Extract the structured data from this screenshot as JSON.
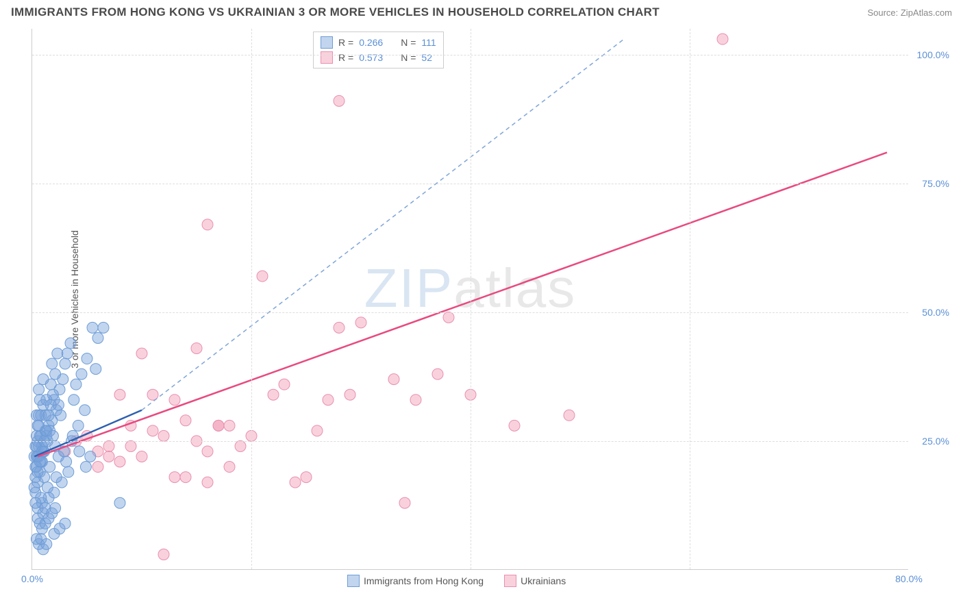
{
  "title": "IMMIGRANTS FROM HONG KONG VS UKRAINIAN 3 OR MORE VEHICLES IN HOUSEHOLD CORRELATION CHART",
  "source": "Source: ZipAtlas.com",
  "watermark_zip": "ZIP",
  "watermark_atlas": "atlas",
  "chart": {
    "type": "scatter-correlation",
    "y_axis_title": "3 or more Vehicles in Household",
    "xlim": [
      0,
      80
    ],
    "ylim": [
      0,
      105
    ],
    "x_ticks": [
      0,
      20,
      40,
      60,
      80
    ],
    "x_tick_labels": [
      "0.0%",
      "",
      "",
      "",
      "80.0%"
    ],
    "y_ticks": [
      25,
      50,
      75,
      100
    ],
    "y_tick_labels": [
      "25.0%",
      "50.0%",
      "75.0%",
      "100.0%"
    ],
    "background_color": "#ffffff",
    "grid_color": "#dddddd",
    "series": [
      {
        "name": "Immigrants from Hong Kong",
        "fill_color": "rgba(120,162,219,0.45)",
        "stroke_color": "#6d9cd6",
        "trend_color": "#2d5fb0",
        "trend_dash_color": "#7fa5d9",
        "R": "0.266",
        "N": "111",
        "trend_solid": {
          "x1": 0.2,
          "y1": 22,
          "x2": 10,
          "y2": 31
        },
        "trend_dash": {
          "x1": 10,
          "y1": 31,
          "x2": 54,
          "y2": 103
        },
        "points": [
          [
            0.5,
            22
          ],
          [
            0.6,
            24
          ],
          [
            0.8,
            21
          ],
          [
            1.0,
            23
          ],
          [
            0.5,
            25
          ],
          [
            0.4,
            20
          ],
          [
            0.7,
            26
          ],
          [
            1.2,
            27
          ],
          [
            0.3,
            18
          ],
          [
            0.9,
            24
          ],
          [
            1.5,
            28
          ],
          [
            0.6,
            22
          ],
          [
            0.8,
            30
          ],
          [
            1.0,
            32
          ],
          [
            1.3,
            26
          ],
          [
            0.4,
            24
          ],
          [
            2.0,
            33
          ],
          [
            2.5,
            35
          ],
          [
            1.8,
            29
          ],
          [
            1.2,
            30
          ],
          [
            0.7,
            19
          ],
          [
            0.5,
            17
          ],
          [
            1.4,
            25
          ],
          [
            2.2,
            31
          ],
          [
            1.6,
            27
          ],
          [
            0.9,
            21
          ],
          [
            1.1,
            23
          ],
          [
            2.8,
            37
          ],
          [
            3.0,
            40
          ],
          [
            2.4,
            32
          ],
          [
            1.9,
            34
          ],
          [
            0.3,
            15
          ],
          [
            0.6,
            28
          ],
          [
            1.7,
            36
          ],
          [
            2.1,
            38
          ],
          [
            3.2,
            42
          ],
          [
            3.5,
            44
          ],
          [
            2.6,
            30
          ],
          [
            1.3,
            33
          ],
          [
            0.8,
            26
          ],
          [
            4.0,
            36
          ],
          [
            3.8,
            33
          ],
          [
            4.5,
            38
          ],
          [
            5.0,
            41
          ],
          [
            4.2,
            28
          ],
          [
            3.6,
            25
          ],
          [
            2.9,
            23
          ],
          [
            5.5,
            47
          ],
          [
            6.0,
            45
          ],
          [
            5.8,
            39
          ],
          [
            4.8,
            31
          ],
          [
            3.3,
            19
          ],
          [
            2.7,
            17
          ],
          [
            1.5,
            14
          ],
          [
            2.0,
            15
          ],
          [
            6.5,
            47
          ],
          [
            1.0,
            37
          ],
          [
            0.6,
            35
          ],
          [
            1.8,
            40
          ],
          [
            2.3,
            42
          ],
          [
            0.4,
            30
          ],
          [
            0.7,
            33
          ],
          [
            1.1,
            18
          ],
          [
            1.4,
            16
          ],
          [
            0.9,
            13
          ],
          [
            0.5,
            12
          ],
          [
            1.6,
            20
          ],
          [
            2.2,
            18
          ],
          [
            3.1,
            21
          ],
          [
            3.7,
            26
          ],
          [
            4.3,
            23
          ],
          [
            4.9,
            20
          ],
          [
            5.3,
            22
          ],
          [
            0.2,
            22
          ],
          [
            0.3,
            24
          ],
          [
            0.4,
            26
          ],
          [
            0.5,
            28
          ],
          [
            0.6,
            30
          ],
          [
            0.8,
            14
          ],
          [
            1.0,
            11
          ],
          [
            1.2,
            12
          ],
          [
            0.3,
            20
          ],
          [
            0.4,
            22
          ],
          [
            0.5,
            19
          ],
          [
            0.7,
            21
          ],
          [
            0.9,
            23
          ],
          [
            1.1,
            25
          ],
          [
            1.3,
            27
          ],
          [
            1.5,
            30
          ],
          [
            1.7,
            32
          ],
          [
            1.9,
            26
          ],
          [
            2.1,
            24
          ],
          [
            2.4,
            22
          ],
          [
            0.2,
            16
          ],
          [
            0.3,
            13
          ],
          [
            0.5,
            10
          ],
          [
            0.7,
            9
          ],
          [
            0.9,
            8
          ],
          [
            1.2,
            9
          ],
          [
            1.5,
            10
          ],
          [
            1.8,
            11
          ],
          [
            2.1,
            12
          ],
          [
            0.4,
            6
          ],
          [
            0.6,
            5
          ],
          [
            0.8,
            6
          ],
          [
            1.0,
            4
          ],
          [
            1.3,
            5
          ],
          [
            2.0,
            7
          ],
          [
            2.5,
            8
          ],
          [
            3.0,
            9
          ],
          [
            8.0,
            13
          ]
        ]
      },
      {
        "name": "Ukrainians",
        "fill_color": "rgba(240,140,170,0.40)",
        "stroke_color": "#e98fb0",
        "trend_color": "#e84a7f",
        "trend_dash_color": "#f0a5c0",
        "R": "0.573",
        "N": "52",
        "trend_solid": {
          "x1": 0.5,
          "y1": 22,
          "x2": 78,
          "y2": 81
        },
        "trend_dash": null,
        "points": [
          [
            6,
            23
          ],
          [
            3,
            23
          ],
          [
            4,
            25
          ],
          [
            7,
            24
          ],
          [
            5,
            26
          ],
          [
            8,
            21
          ],
          [
            10,
            22
          ],
          [
            12,
            26
          ],
          [
            9,
            24
          ],
          [
            11,
            27
          ],
          [
            14,
            29
          ],
          [
            13,
            18
          ],
          [
            15,
            25
          ],
          [
            16,
            23
          ],
          [
            17,
            28
          ],
          [
            18,
            20
          ],
          [
            19,
            24
          ],
          [
            20,
            26
          ],
          [
            14,
            18
          ],
          [
            12,
            3
          ],
          [
            16,
            17
          ],
          [
            18,
            28
          ],
          [
            10,
            42
          ],
          [
            8,
            34
          ],
          [
            11,
            34
          ],
          [
            13,
            33
          ],
          [
            22,
            34
          ],
          [
            24,
            17
          ],
          [
            23,
            36
          ],
          [
            25,
            18
          ],
          [
            27,
            33
          ],
          [
            26,
            27
          ],
          [
            6,
            20
          ],
          [
            7,
            22
          ],
          [
            28,
            47
          ],
          [
            29,
            34
          ],
          [
            16,
            67
          ],
          [
            21,
            57
          ],
          [
            30,
            48
          ],
          [
            33,
            37
          ],
          [
            35,
            33
          ],
          [
            37,
            38
          ],
          [
            38,
            49
          ],
          [
            40,
            34
          ],
          [
            44,
            28
          ],
          [
            49,
            30
          ],
          [
            63,
            103
          ],
          [
            28,
            91
          ],
          [
            34,
            13
          ],
          [
            9,
            28
          ],
          [
            15,
            43
          ],
          [
            17,
            28
          ]
        ]
      }
    ]
  },
  "legend_bottom": {
    "series1_label": "Immigrants from Hong Kong",
    "series2_label": "Ukrainians"
  },
  "legend_top": {
    "r_label": "R =",
    "n_label": "N ="
  }
}
